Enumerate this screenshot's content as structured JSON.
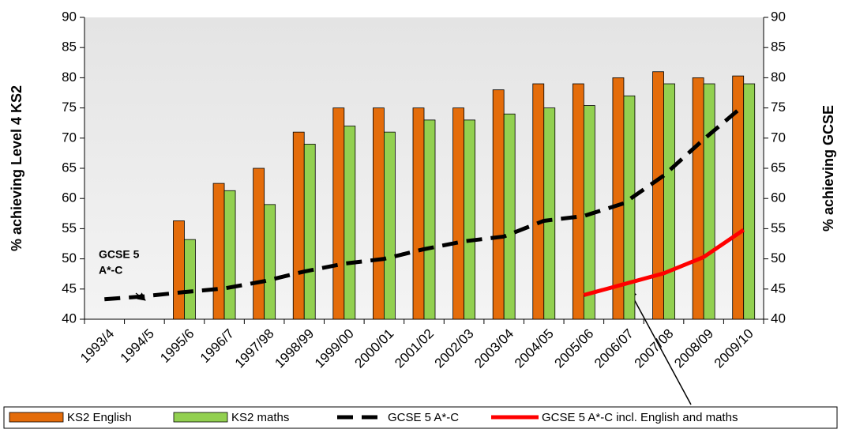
{
  "chart_data": {
    "type": "bar",
    "categories": [
      "1993/4",
      "1994/5",
      "1995/6",
      "1996/7",
      "1997/98",
      "1998/99",
      "1999/00",
      "2000/01",
      "2001/02",
      "2002/03",
      "2003/04",
      "2004/05",
      "2005/06",
      "2006/07",
      "2007/08",
      "2008/09",
      "2009/10"
    ],
    "series": [
      {
        "name": "KS2 English",
        "type": "bar",
        "color": "#e46c0a",
        "values": [
          null,
          null,
          56.3,
          62.5,
          65,
          71,
          75,
          75,
          75,
          75,
          78,
          79,
          79,
          80,
          81,
          80,
          80.3
        ]
      },
      {
        "name": "KS2 maths",
        "type": "bar",
        "color": "#92d050",
        "values": [
          null,
          null,
          53.2,
          61.3,
          59,
          69,
          72,
          71,
          73,
          73,
          74,
          75,
          75.4,
          77,
          79,
          79,
          79
        ]
      },
      {
        "name": "GCSE 5 A*-C",
        "type": "line",
        "dashed": true,
        "axis": "y2",
        "color": "#000000",
        "values": [
          43.3,
          43.8,
          44.5,
          45.1,
          46.3,
          47.9,
          49.2,
          50.0,
          51.6,
          52.9,
          53.7,
          56.3,
          57.1,
          59.2,
          63.8,
          69.8,
          75.4
        ]
      },
      {
        "name": "GCSE 5 A*-C  incl. English and maths",
        "type": "line",
        "axis": "y2",
        "color": "#ff0000",
        "values": [
          null,
          null,
          null,
          null,
          null,
          null,
          null,
          null,
          null,
          null,
          null,
          null,
          44.0,
          45.8,
          47.6,
          50.3,
          54.8
        ]
      }
    ],
    "ylabel": "% achieving Level 4 KS2",
    "y2label": "% achieving GCSE",
    "ylim": [
      40,
      90
    ],
    "yticks": [
      40,
      45,
      50,
      55,
      60,
      65,
      70,
      75,
      80,
      85,
      90
    ],
    "y2lim": [
      40,
      90
    ],
    "y2ticks": [
      40,
      45,
      50,
      55,
      60,
      65,
      70,
      75,
      80,
      85,
      90
    ],
    "annotations": [
      {
        "lines": [
          "GCSE 5",
          "A*-C"
        ]
      }
    ],
    "legend": "bottom"
  }
}
